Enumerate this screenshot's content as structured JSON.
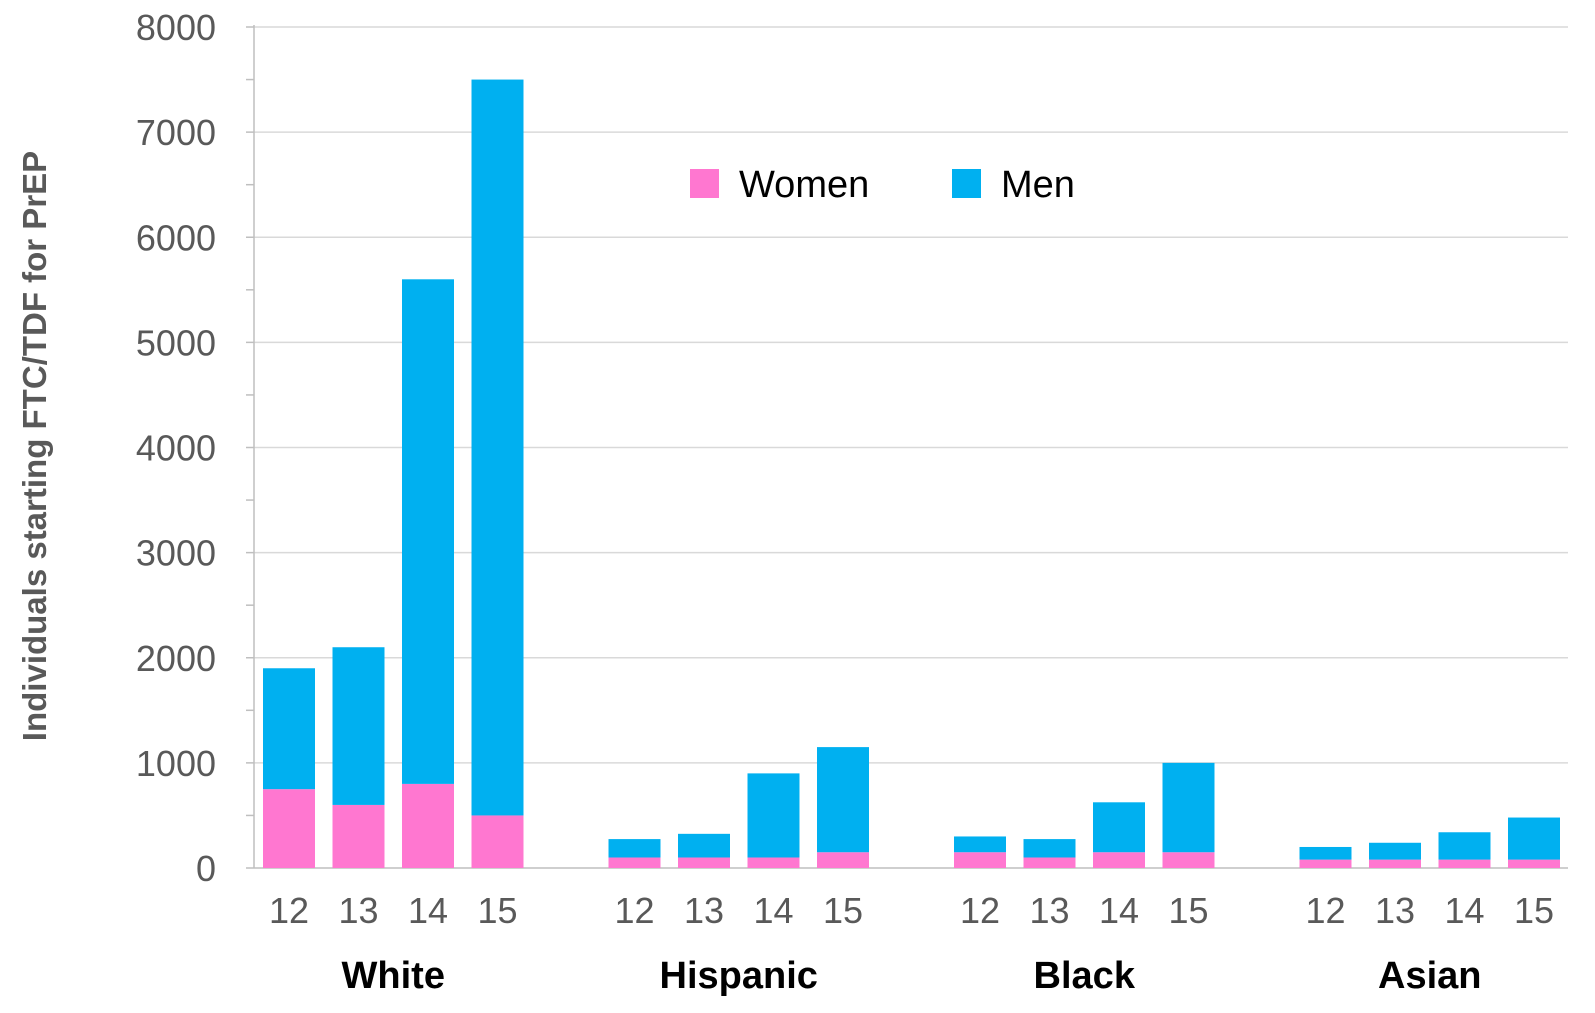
{
  "chart_data": {
    "type": "bar",
    "stacked": true,
    "ylabel": "Individuals starting FTC/TDF for PrEP",
    "ylim": [
      0,
      8000
    ],
    "yticks": [
      0,
      1000,
      2000,
      3000,
      4000,
      5000,
      6000,
      7000,
      8000
    ],
    "grid": true,
    "legend_position": "top-center",
    "groups": [
      "White",
      "Hispanic",
      "Black",
      "Asian"
    ],
    "categories": [
      "12",
      "13",
      "14",
      "15"
    ],
    "series": [
      {
        "name": "Women",
        "color": "#ff77d0",
        "values": [
          [
            750,
            600,
            800,
            500
          ],
          [
            100,
            100,
            100,
            150
          ],
          [
            150,
            100,
            150,
            150
          ],
          [
            80,
            80,
            80,
            80
          ]
        ]
      },
      {
        "name": "Men",
        "color": "#00b0f0",
        "values": [
          [
            1150,
            1500,
            4800,
            7000
          ],
          [
            175,
            225,
            800,
            1000
          ],
          [
            150,
            175,
            475,
            850
          ],
          [
            120,
            160,
            260,
            400
          ]
        ]
      }
    ]
  }
}
